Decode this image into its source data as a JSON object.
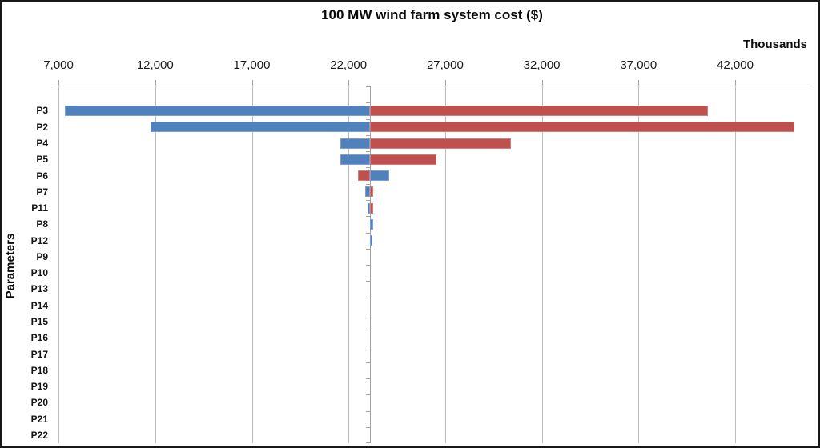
{
  "chart_data": {
    "type": "bar",
    "subtype": "tornado",
    "orientation": "horizontal",
    "title": "100 MW wind farm system cost ($)",
    "x_unit": "Thousands",
    "ylabel": "Parameters",
    "x_tick_labels": [
      "7,000",
      "12,000",
      "17,000",
      "22,000",
      "27,000",
      "32,000",
      "37,000",
      "42,000"
    ],
    "x_tick_values": [
      7000,
      12000,
      17000,
      22000,
      27000,
      32000,
      37000,
      42000
    ],
    "x_plot_range": [
      6830,
      45810
    ],
    "baseline_value": 23100,
    "grid": true,
    "legend": "none",
    "colors": {
      "blue_decrease": "#4f81bd",
      "red_increase": "#c0504d"
    },
    "leading_empty_rows": 1,
    "rows": [
      {
        "label": "P3",
        "blue": [
          7325,
          23100
        ],
        "red": [
          23100,
          40600
        ]
      },
      {
        "label": "P2",
        "blue": [
          11750,
          23100
        ],
        "red": [
          23100,
          45050
        ]
      },
      {
        "label": "P4",
        "blue": [
          21590,
          23100
        ],
        "red": [
          23100,
          30420
        ]
      },
      {
        "label": "P5",
        "blue": [
          21590,
          23100
        ],
        "red": [
          23100,
          26550
        ]
      },
      {
        "label": "P6",
        "blue": [
          23100,
          24120
        ],
        "red": [
          22470,
          23100
        ]
      },
      {
        "label": "P7",
        "blue": [
          22850,
          23100
        ],
        "red": [
          23100,
          23270
        ]
      },
      {
        "label": "P11",
        "blue": [
          22980,
          23100
        ],
        "red": [
          23100,
          23270
        ]
      },
      {
        "label": "P8",
        "blue": [
          23100,
          23290
        ],
        "red": null
      },
      {
        "label": "P12",
        "blue": [
          23100,
          23250
        ],
        "red": null
      },
      {
        "label": "P9",
        "blue": null,
        "red": null
      },
      {
        "label": "P10",
        "blue": null,
        "red": null
      },
      {
        "label": "P13",
        "blue": null,
        "red": null
      },
      {
        "label": "P14",
        "blue": null,
        "red": null
      },
      {
        "label": "P15",
        "blue": null,
        "red": null
      },
      {
        "label": "P16",
        "blue": null,
        "red": null
      },
      {
        "label": "P17",
        "blue": null,
        "red": null
      },
      {
        "label": "P18",
        "blue": null,
        "red": null
      },
      {
        "label": "P19",
        "blue": null,
        "red": null
      },
      {
        "label": "P20",
        "blue": null,
        "red": null
      },
      {
        "label": "P21",
        "blue": null,
        "red": null
      },
      {
        "label": "P22",
        "blue": null,
        "red": null
      }
    ]
  }
}
